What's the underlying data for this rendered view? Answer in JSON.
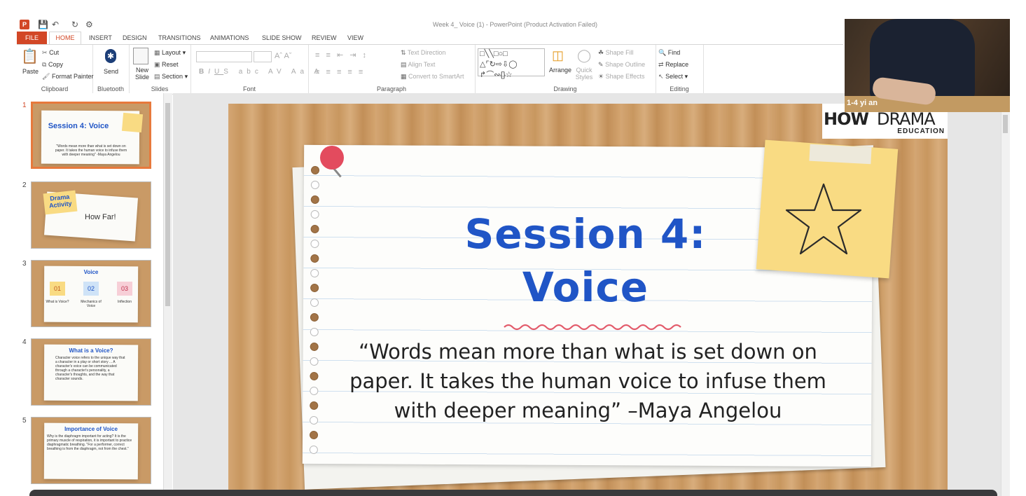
{
  "window": {
    "title": "Week 4_ Voice (1) - PowerPoint (Product Activation Failed)",
    "app_badge": "P"
  },
  "ribbon_tabs": [
    "FILE",
    "HOME",
    "INSERT",
    "DESIGN",
    "TRANSITIONS",
    "ANIMATIONS",
    "SLIDE SHOW",
    "REVIEW",
    "VIEW"
  ],
  "clipboard": {
    "paste": "Paste",
    "cut": "Cut",
    "copy": "Copy",
    "format_painter": "Format Painter",
    "label": "Clipboard"
  },
  "bluetooth": {
    "send": "Send",
    "label": "Bluetooth"
  },
  "slides_grp": {
    "new_slide": "New Slide",
    "layout": "Layout",
    "reset": "Reset",
    "section": "Section",
    "label": "Slides"
  },
  "font_grp": {
    "label": "Font"
  },
  "paragraph_grp": {
    "text_direction": "Text Direction",
    "align_text": "Align Text",
    "convert": "Convert to SmartArt",
    "label": "Paragraph"
  },
  "drawing_grp": {
    "arrange": "Arrange",
    "quick_styles": "Quick Styles",
    "shape_fill": "Shape Fill",
    "shape_outline": "Shape Outline",
    "shape_effects": "Shape Effects",
    "label": "Drawing"
  },
  "editing_grp": {
    "find": "Find",
    "replace": "Replace",
    "select": "Select",
    "label": "Editing"
  },
  "thumbnails": [
    {
      "num": "1",
      "title": "Session 4: Voice",
      "quote": "\"Words mean more than what is set down on paper. It takes the human voice to infuse them with deeper meaning\" -Maya Angelou",
      "logo": "HOW DRAMA"
    },
    {
      "num": "2",
      "tag": "Drama Activity",
      "title": "How Far!"
    },
    {
      "num": "3",
      "title": "Voice",
      "items": [
        {
          "n": "01",
          "label": "What is Voice?"
        },
        {
          "n": "02",
          "label": "Mechanics of Voice"
        },
        {
          "n": "03",
          "label": "Inflection"
        }
      ]
    },
    {
      "num": "4",
      "title": "What is a Voice?",
      "body": "Character voice refers to the unique way that a character in a play or short story ... A character's voice can be communicated through a character's personality, a character's thoughts, and the way that character sounds."
    },
    {
      "num": "5",
      "title": "Importance of Voice",
      "body": "Why is the diaphragm important for acting? It is the primary muscle of respiration, it is important to practice diaphragmatic breathing. \"For a performer, correct breathing is from the diaphragm, not from the chest.\""
    }
  ],
  "slide": {
    "title_line1": "Session 4:",
    "title_line2": "Voice",
    "quote_line1": "“Words mean more than what is set down on",
    "quote_line2": "paper. It takes the human voice to infuse them",
    "quote_line3": "with deeper meaning” –Maya Angelou",
    "logo_how": "HOW",
    "logo_drama": "DRAMA",
    "logo_edu": "EDUCATION"
  },
  "video": {
    "participant_name": "1-4 yi an"
  },
  "colors": {
    "accent": "#d24726",
    "title_blue": "#2055c6",
    "note_yellow": "#f9db83",
    "pin_red": "#e34b5e"
  }
}
